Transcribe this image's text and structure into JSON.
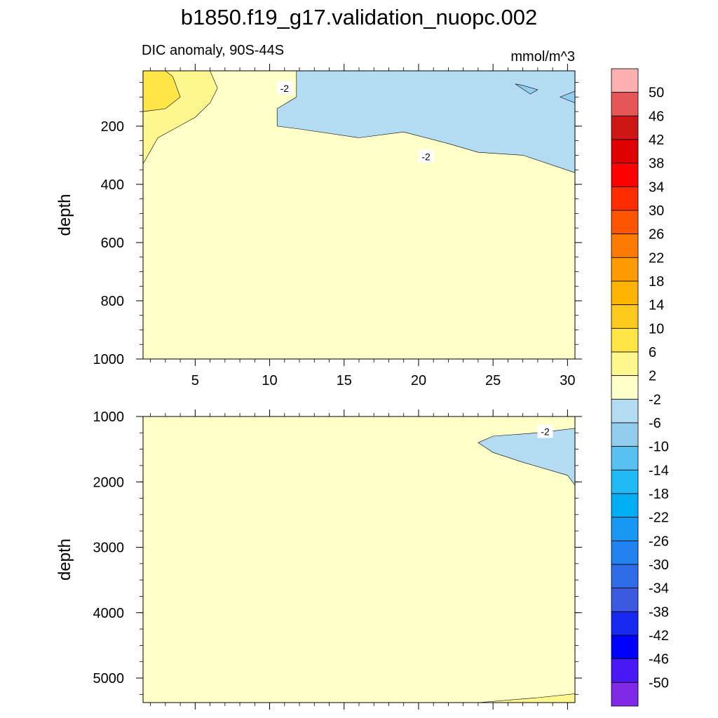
{
  "page": {
    "title": "b1850.f19_g17.validation_nuopc.002"
  },
  "chart_data": [
    {
      "type": "contour",
      "left_string": "DIC anomaly, 90S-44S",
      "right_string": "mmol/m^3",
      "ylabel": "depth",
      "xlabel": "",
      "xlim": [
        1.5,
        30.5
      ],
      "ylim": [
        1000,
        10
      ],
      "x_tick_labels": [
        "5",
        "10",
        "15",
        "20",
        "25",
        "30"
      ],
      "x_ticks": [
        5,
        10,
        15,
        20,
        25,
        30
      ],
      "y_tick_labels": [
        "200",
        "400",
        "600",
        "800",
        "1000"
      ],
      "y_ticks": [
        200,
        400,
        600,
        800,
        1000
      ],
      "contour_labels": [
        {
          "text": "-2",
          "x": 11.0,
          "y": 70
        },
        {
          "text": "-2",
          "x": 20.5,
          "y": 305
        }
      ],
      "regions": [
        {
          "range": "-6 to -2",
          "color": "#b3dcf3",
          "points": [
            [
              11.8,
              10
            ],
            [
              11.8,
              100
            ],
            [
              10.5,
              140
            ],
            [
              10.5,
              200
            ],
            [
              12,
              210
            ],
            [
              16,
              240
            ],
            [
              19,
              220
            ],
            [
              22,
              260
            ],
            [
              24,
              290
            ],
            [
              27,
              300
            ],
            [
              30.5,
              360
            ],
            [
              30.5,
              10
            ]
          ]
        },
        {
          "range": "-10 to -6",
          "color": "#93cdee",
          "points": [
            [
              26.5,
              55
            ],
            [
              27.5,
              90
            ],
            [
              28,
              75
            ],
            [
              27,
              60
            ]
          ]
        },
        {
          "range": "-10 to -6",
          "color": "#93cdee",
          "points": [
            [
              29.5,
              100
            ],
            [
              30.5,
              120
            ],
            [
              30.5,
              80
            ]
          ]
        },
        {
          "range": "2 to 6",
          "color": "#fff68f",
          "points": [
            [
              1.5,
              10
            ],
            [
              1.5,
              330
            ],
            [
              2.5,
              240
            ],
            [
              5,
              170
            ],
            [
              6,
              120
            ],
            [
              6.5,
              70
            ],
            [
              6,
              10
            ]
          ]
        },
        {
          "range": "6 to 10",
          "color": "#ffe545",
          "points": [
            [
              1.5,
              10
            ],
            [
              1.5,
              150
            ],
            [
              3,
              140
            ],
            [
              4,
              100
            ],
            [
              3.5,
              30
            ],
            [
              3,
              10
            ]
          ]
        }
      ]
    },
    {
      "type": "contour",
      "ylabel": "depth",
      "xlabel": "",
      "xlim": [
        1.5,
        30.5
      ],
      "ylim": [
        5375,
        1000
      ],
      "x_tick_labels": [
        "",
        "",
        "",
        "",
        "",
        ""
      ],
      "x_ticks": [
        5,
        10,
        15,
        20,
        25,
        30
      ],
      "y_tick_labels": [
        "1000",
        "2000",
        "3000",
        "4000",
        "5000"
      ],
      "y_ticks": [
        1000,
        2000,
        3000,
        4000,
        5000
      ],
      "contour_labels": [
        {
          "text": "-2",
          "x": 28.5,
          "y": 1230
        }
      ],
      "regions": [
        {
          "range": "-6 to -2",
          "color": "#b3dcf3",
          "points": [
            [
              24,
              1400
            ],
            [
              25,
              1550
            ],
            [
              27,
              1700
            ],
            [
              30,
              1900
            ],
            [
              30.5,
              2050
            ],
            [
              30.5,
              1180
            ],
            [
              28,
              1250
            ],
            [
              25,
              1300
            ]
          ]
        },
        {
          "range": "2 to 6",
          "color": "#fff68f",
          "points": [
            [
              24,
              5375
            ],
            [
              28,
              5300
            ],
            [
              30.5,
              5240
            ],
            [
              30.5,
              5375
            ]
          ]
        }
      ]
    }
  ],
  "colorbar": {
    "labels": [
      "50",
      "46",
      "42",
      "38",
      "34",
      "30",
      "26",
      "22",
      "18",
      "14",
      "10",
      "6",
      "2",
      "-2",
      "-6",
      "-10",
      "-14",
      "-18",
      "-22",
      "-26",
      "-30",
      "-34",
      "-38",
      "-42",
      "-46",
      "-50"
    ],
    "colors": [
      "#fcb1b0",
      "#e65656",
      "#cf1616",
      "#e00000",
      "#ff0000",
      "#ff2c00",
      "#ff5500",
      "#ff7a00",
      "#ff9a00",
      "#ffb400",
      "#ffca1c",
      "#ffe545",
      "#fff68f",
      "#ffffc8",
      "#b3dcf3",
      "#93cdee",
      "#58c1f2",
      "#21b9f6",
      "#00aef4",
      "#1898f2",
      "#2282ef",
      "#2f6de8",
      "#3c5ae0",
      "#1829f2",
      "#0000ff",
      "#4a18f4",
      "#8029e6"
    ]
  }
}
